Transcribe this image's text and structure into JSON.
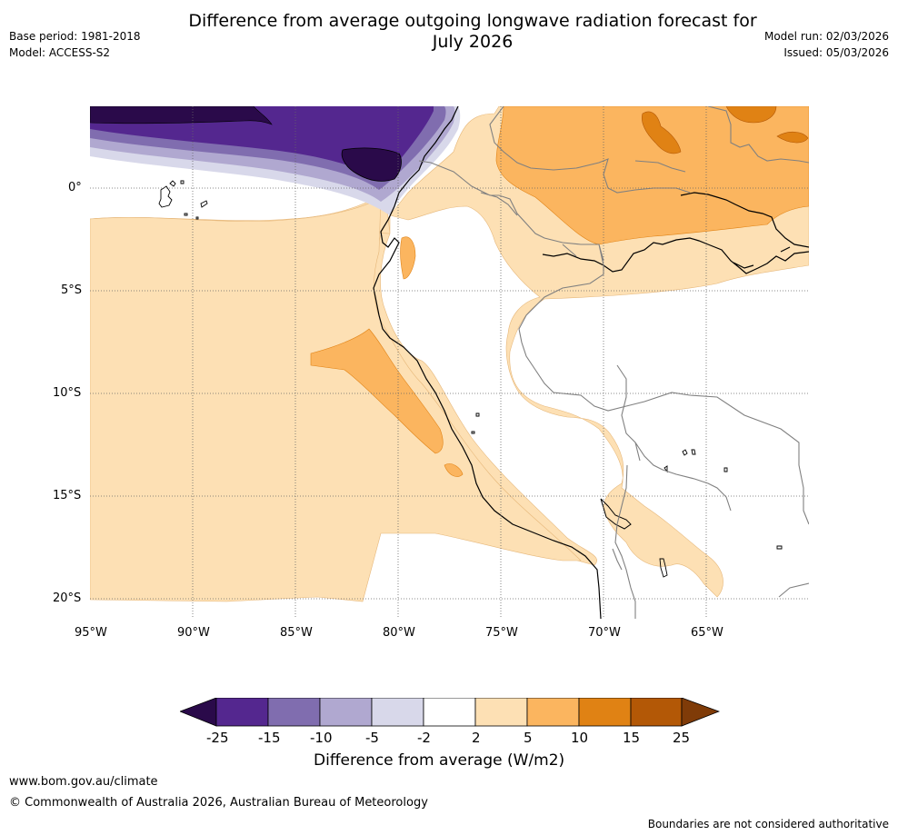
{
  "header": {
    "title_line1": "Difference from average outgoing longwave radiation forecast for",
    "title_line2": "July 2026",
    "base_period": "Base period: 1981-2018",
    "model": "Model: ACCESS-S2",
    "model_run": "Model run: 02/03/2026",
    "issued": "Issued: 05/03/2026"
  },
  "map": {
    "lat_labels": [
      "0°",
      "5°S",
      "10°S",
      "15°S",
      "20°S"
    ],
    "lon_labels": [
      "95°W",
      "90°W",
      "85°W",
      "80°W",
      "75°W",
      "70°W",
      "65°W"
    ]
  },
  "colorbar": {
    "ticks": [
      "-25",
      "-15",
      "-10",
      "-5",
      "-2",
      "2",
      "5",
      "10",
      "15",
      "25"
    ],
    "colors": [
      "#2a0a4a",
      "#54278f",
      "#806daf",
      "#b0a8d0",
      "#d8d8ea",
      "#ffffff",
      "#fde0b4",
      "#fbb55f",
      "#e08214",
      "#b35806",
      "#7f3b08"
    ],
    "label": "Difference from average (W/m2)"
  },
  "footer": {
    "website": "www.bom.gov.au/climate",
    "copyright": "© Commonwealth of Australia 2026, Australian Bureau of Meteorology",
    "disclaimer": "Boundaries are not considered authoritative"
  }
}
